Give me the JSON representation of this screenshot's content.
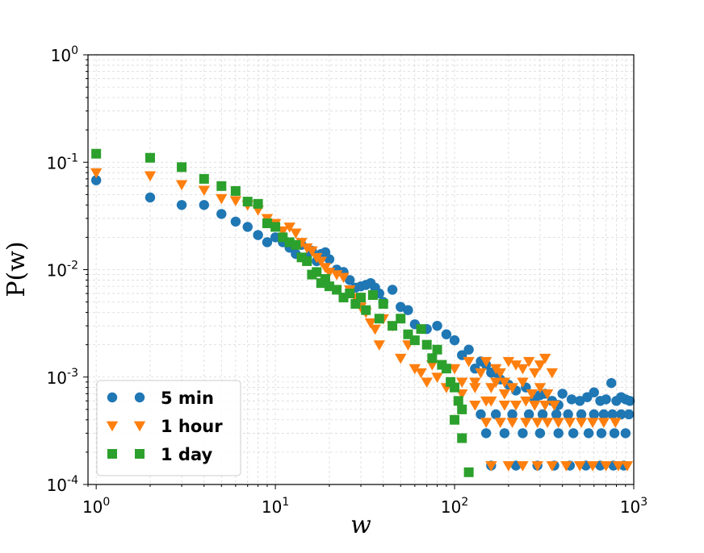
{
  "chart_data": {
    "type": "scatter",
    "title": "",
    "xlabel": "w",
    "ylabel": "P(w)",
    "xscale": "log",
    "yscale": "log",
    "xlim": [
      0.9,
      1000
    ],
    "ylim": [
      0.0001,
      1
    ],
    "grid": true,
    "legend_position": "bottom-left",
    "x_ticks": [
      {
        "base": "10",
        "exp": "0"
      },
      {
        "base": "10",
        "exp": "1"
      },
      {
        "base": "10",
        "exp": "2"
      },
      {
        "base": "10",
        "exp": "3"
      }
    ],
    "y_ticks": [
      {
        "base": "10",
        "exp": "-4"
      },
      {
        "base": "10",
        "exp": "-3"
      },
      {
        "base": "10",
        "exp": "-2"
      },
      {
        "base": "10",
        "exp": "-1"
      },
      {
        "base": "10",
        "exp": "0"
      }
    ],
    "series": [
      {
        "name": "5 min",
        "color": "#1f77b4",
        "marker": "circle",
        "x": [
          1,
          2,
          3,
          4,
          5,
          6,
          7,
          8,
          9,
          10,
          11,
          12,
          13,
          14,
          15,
          16,
          17,
          18,
          19,
          20,
          22,
          24,
          26,
          28,
          30,
          32,
          34,
          36,
          38,
          40,
          45,
          50,
          55,
          60,
          70,
          80,
          90,
          100,
          110,
          120,
          130,
          140,
          150,
          160,
          170,
          180,
          200,
          220,
          250,
          280,
          300,
          320,
          350,
          380,
          400,
          450,
          500,
          550,
          600,
          650,
          700,
          750,
          800,
          850,
          900,
          950,
          140,
          170,
          210,
          260,
          310,
          370,
          430,
          510,
          600,
          680,
          760,
          850,
          940,
          150,
          190,
          240,
          300,
          380,
          460,
          560,
          660,
          780,
          900,
          160,
          220,
          290,
          360,
          440,
          540,
          650,
          770,
          880
        ],
        "y": [
          0.068,
          0.047,
          0.04,
          0.04,
          0.033,
          0.028,
          0.025,
          0.021,
          0.018,
          0.02,
          0.018,
          0.016,
          0.014,
          0.017,
          0.013,
          0.015,
          0.012,
          0.014,
          0.0145,
          0.0125,
          0.01,
          0.0095,
          0.008,
          0.0068,
          0.007,
          0.0072,
          0.0075,
          0.0068,
          0.006,
          0.005,
          0.0065,
          0.0045,
          0.0042,
          0.0031,
          0.0028,
          0.003,
          0.0025,
          0.0022,
          0.0016,
          0.0018,
          0.0012,
          0.0014,
          0.0013,
          0.0011,
          0.0011,
          0.00095,
          0.00085,
          0.00075,
          0.0008,
          0.00062,
          0.00068,
          0.0007,
          0.0006,
          0.00055,
          0.0007,
          0.00062,
          0.0006,
          0.00065,
          0.00072,
          0.0006,
          0.00062,
          0.00088,
          0.0006,
          0.00065,
          0.00062,
          0.0006,
          0.00045,
          0.00045,
          0.00045,
          0.00045,
          0.00045,
          0.00045,
          0.00045,
          0.00045,
          0.00045,
          0.00045,
          0.00045,
          0.00045,
          0.00045,
          0.0003,
          0.0003,
          0.0003,
          0.0003,
          0.0003,
          0.0003,
          0.0003,
          0.0003,
          0.0003,
          0.0003,
          0.00015,
          0.00015,
          0.00015,
          0.00015,
          0.00015,
          0.00015,
          0.00015,
          0.00015,
          0.00015
        ]
      },
      {
        "name": "1 hour",
        "color": "#ff7f0e",
        "marker": "triangle-down",
        "x": [
          1,
          2,
          3,
          4,
          5,
          6,
          7,
          8,
          9,
          10,
          11,
          12,
          13,
          14,
          15,
          16,
          17,
          18,
          19,
          20,
          22,
          24,
          26,
          28,
          30,
          32,
          34,
          36,
          38,
          40,
          45,
          50,
          55,
          60,
          65,
          70,
          75,
          80,
          90,
          100,
          110,
          120,
          130,
          140,
          150,
          160,
          170,
          180,
          190,
          200,
          220,
          240,
          260,
          280,
          300,
          320,
          350,
          110,
          130,
          150,
          170,
          190,
          210,
          240,
          270,
          300,
          330,
          130,
          160,
          190,
          220,
          250,
          280,
          320,
          360,
          150,
          180,
          210,
          250,
          290,
          330,
          380,
          440,
          510,
          590,
          680,
          790,
          160,
          200,
          240,
          290,
          350,
          420,
          500,
          590,
          700,
          820,
          920
        ],
        "y": [
          0.08,
          0.075,
          0.062,
          0.055,
          0.046,
          0.044,
          0.04,
          0.036,
          0.03,
          0.027,
          0.023,
          0.025,
          0.022,
          0.018,
          0.016,
          0.015,
          0.013,
          0.012,
          0.0105,
          0.0095,
          0.009,
          0.0085,
          0.0065,
          0.0055,
          0.0045,
          0.004,
          0.0032,
          0.0028,
          0.002,
          0.0035,
          0.003,
          0.0015,
          0.002,
          0.0012,
          0.0011,
          0.0009,
          0.0013,
          0.001,
          0.0008,
          0.0012,
          0.0007,
          0.0014,
          0.0009,
          0.0011,
          0.0014,
          0.0008,
          0.0012,
          0.0011,
          0.0009,
          0.0014,
          0.0013,
          0.0012,
          0.0014,
          0.0011,
          0.0013,
          0.0015,
          0.0011,
          0.0009,
          0.0008,
          0.0006,
          0.0009,
          0.0007,
          0.0008,
          0.0009,
          0.0007,
          0.0008,
          0.0007,
          0.00055,
          0.0006,
          0.00055,
          0.00055,
          0.0006,
          0.00055,
          0.00055,
          0.00055,
          0.00038,
          0.00038,
          0.00038,
          0.00038,
          0.00038,
          0.00038,
          0.00038,
          0.00038,
          0.00038,
          0.00038,
          0.00038,
          0.00038,
          0.00015,
          0.00015,
          0.00015,
          0.00015,
          0.00015,
          0.00015,
          0.00015,
          0.00015,
          0.00015,
          0.00015,
          0.00015
        ]
      },
      {
        "name": "1 day",
        "color": "#2ca02c",
        "marker": "square",
        "x": [
          1,
          2,
          3,
          4,
          5,
          6,
          7,
          8,
          9,
          10,
          11,
          12,
          13,
          14,
          15,
          16,
          17,
          18,
          19,
          20,
          22,
          24,
          26,
          28,
          30,
          32,
          35,
          38,
          40,
          45,
          50,
          55,
          60,
          65,
          70,
          75,
          80,
          85,
          90,
          95,
          100,
          105,
          110,
          100,
          110,
          120
        ],
        "y": [
          0.12,
          0.11,
          0.09,
          0.07,
          0.06,
          0.054,
          0.043,
          0.041,
          0.027,
          0.025,
          0.02,
          0.018,
          0.017,
          0.013,
          0.012,
          0.009,
          0.0095,
          0.0075,
          0.0082,
          0.007,
          0.0065,
          0.0055,
          0.006,
          0.0048,
          0.0055,
          0.0042,
          0.0058,
          0.0035,
          0.0048,
          0.003,
          0.0035,
          0.0025,
          0.0022,
          0.0028,
          0.002,
          0.0015,
          0.0018,
          0.0013,
          0.0012,
          0.0009,
          0.0008,
          0.0006,
          0.0005,
          0.0004,
          0.00027,
          0.00013
        ]
      }
    ]
  }
}
